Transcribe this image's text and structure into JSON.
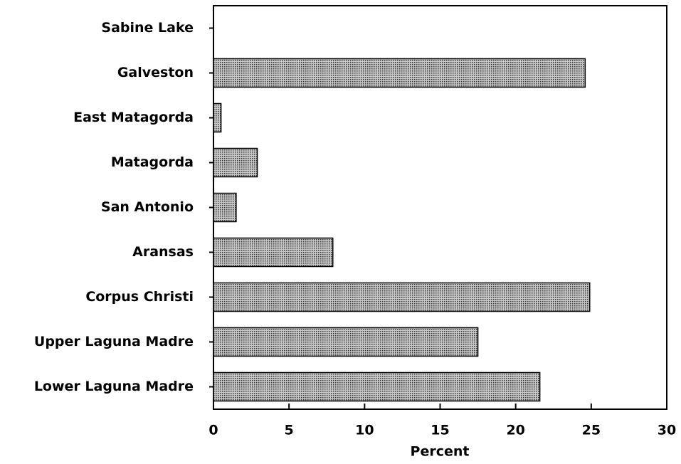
{
  "chart_data": {
    "type": "barh",
    "xlabel": "Percent",
    "categories": [
      "Sabine Lake",
      "Galveston",
      "East Matagorda",
      "Matagorda",
      "San Antonio",
      "Aransas",
      "Corpus Christi",
      "Upper Laguna Madre",
      "Lower Laguna Madre"
    ],
    "values": [
      0,
      24.6,
      0.5,
      2.9,
      1.5,
      7.9,
      24.9,
      17.5,
      21.6
    ],
    "color": "#8a8a8a",
    "xlim": [
      0,
      30
    ],
    "xticks": [
      0,
      5,
      10,
      15,
      20,
      25,
      30
    ],
    "grid": false
  }
}
